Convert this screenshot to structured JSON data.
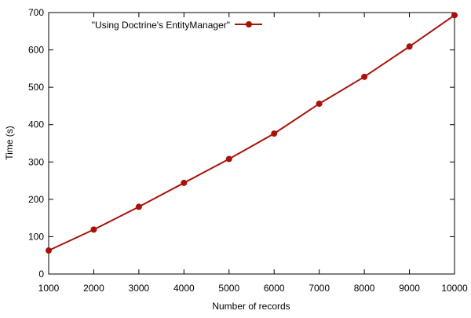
{
  "chart_data": {
    "type": "line",
    "title": "",
    "xlabel": "Number of records",
    "ylabel": "Time (s)",
    "xlim": [
      1000,
      10000
    ],
    "ylim": [
      0,
      700
    ],
    "xticks": [
      1000,
      2000,
      3000,
      4000,
      5000,
      6000,
      7000,
      8000,
      9000,
      10000
    ],
    "yticks": [
      0,
      100,
      200,
      300,
      400,
      500,
      600,
      700
    ],
    "grid": false,
    "legend_position": "top-left",
    "series": [
      {
        "name": "\"Using Doctrine's EntityManager\"",
        "color": "#a8120a",
        "marker": "circle",
        "x": [
          1000,
          2000,
          3000,
          4000,
          5000,
          6000,
          7000,
          8000,
          9000,
          10000
        ],
        "y": [
          63,
          119,
          180,
          244,
          308,
          376,
          456,
          528,
          609,
          693
        ]
      }
    ]
  }
}
